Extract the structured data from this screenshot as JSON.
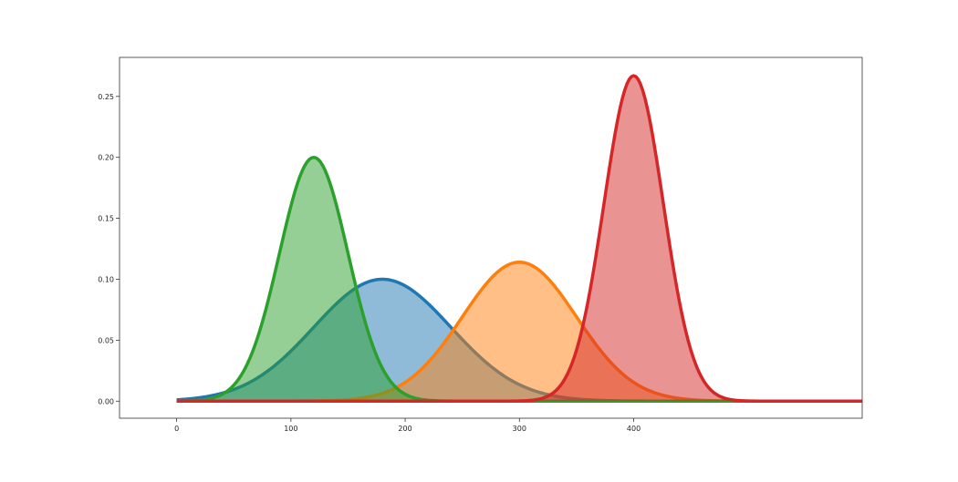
{
  "chart_data": {
    "type": "area",
    "title": "",
    "xlabel": "",
    "ylabel": "",
    "xlim": [
      -50,
      600
    ],
    "ylim": [
      -0.014,
      0.282
    ],
    "x_ticks": [
      0,
      100,
      200,
      300,
      400
    ],
    "y_ticks": [
      0.0,
      0.05,
      0.1,
      0.15,
      0.2,
      0.25
    ],
    "x_tick_labels": [
      "0",
      "100",
      "200",
      "300",
      "400"
    ],
    "y_tick_labels": [
      "0.00",
      "0.05",
      "0.10",
      "0.15",
      "0.20",
      "0.25"
    ],
    "grid": false,
    "legend": "none",
    "x_range": [
      0,
      600
    ],
    "series": [
      {
        "distribution": "normal",
        "mean": 180,
        "std": 60,
        "peak": 0.1,
        "color": "#1f77b4"
      },
      {
        "distribution": "normal",
        "mean": 300,
        "std": 50,
        "peak": 0.114,
        "color": "#ff7f0e"
      },
      {
        "distribution": "normal",
        "mean": 120,
        "std": 30,
        "peak": 0.2,
        "color": "#2ca02c"
      },
      {
        "distribution": "normal",
        "mean": 400,
        "std": 26,
        "peak": 0.267,
        "color": "#d62728"
      }
    ]
  }
}
